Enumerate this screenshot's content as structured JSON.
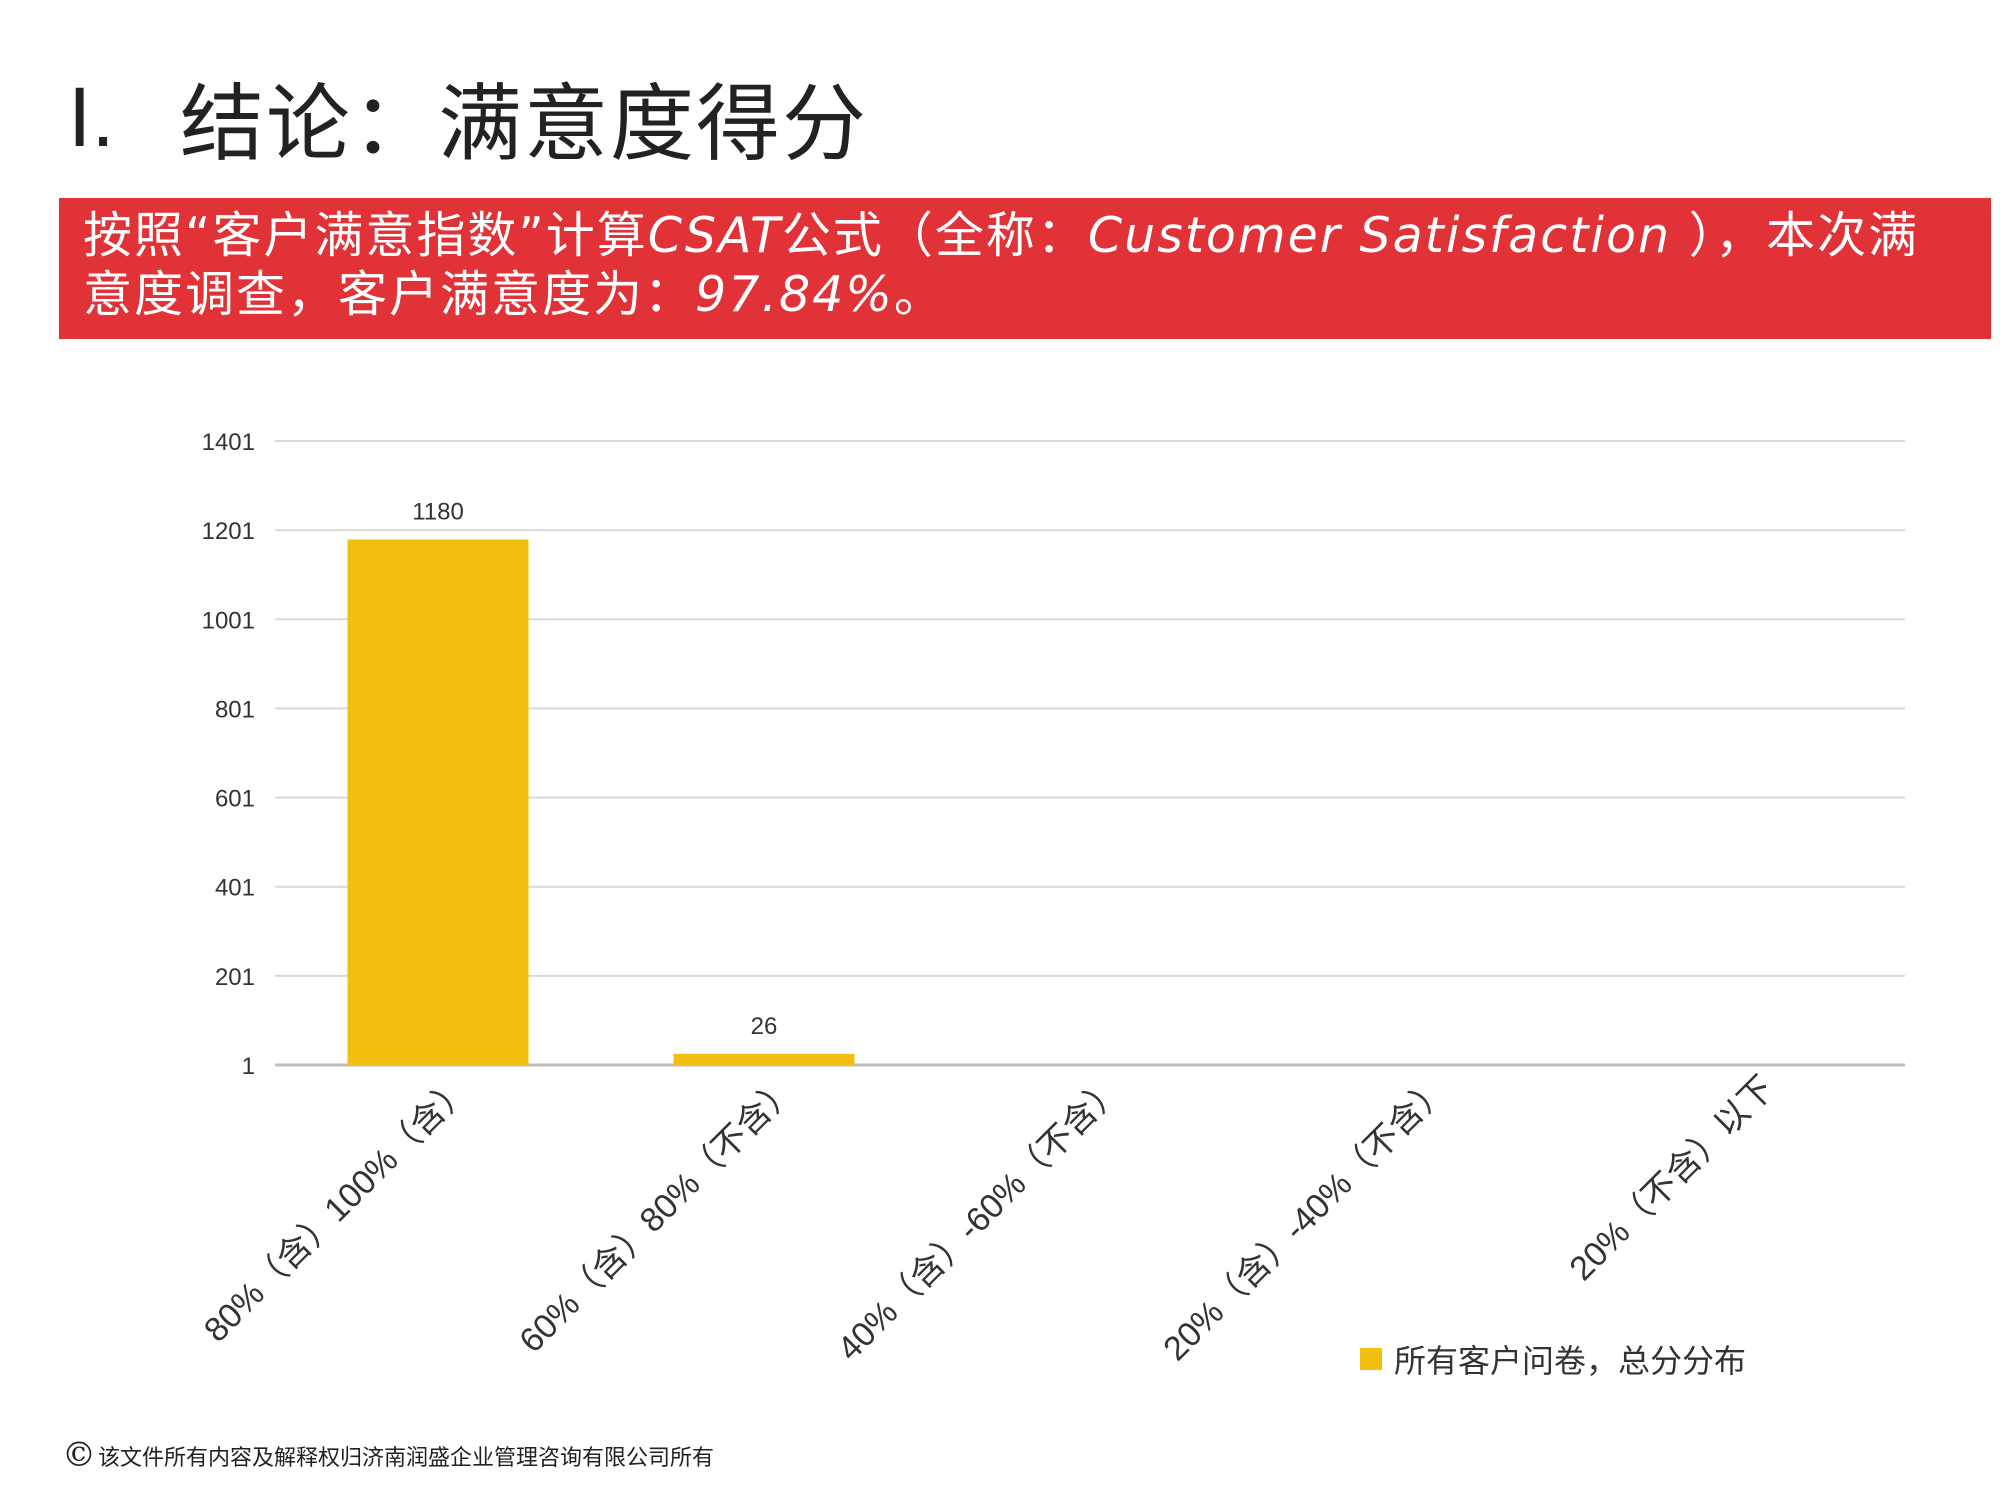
{
  "slide": {
    "number": "I.",
    "title": "结论：满意度得分"
  },
  "banner": {
    "bg_color": "#e03237",
    "line1_a": "按照“客户满意指数”计算",
    "line1_b": "CSAT",
    "line1_c": "公式（全称：",
    "line1_d": "Customer Satisfaction",
    "line1_e": " ），本次满",
    "line2_a": "意度调查，客户满意度为：",
    "line2_b": "97.84%",
    "line2_c": "。"
  },
  "chart_data": {
    "type": "bar",
    "categories": [
      "80%（含）100%（含）",
      "60%（含）80%（不含）",
      "40%（含）-60%（不含）",
      "20%（含）-40%（不含）",
      "20%（不含）以下"
    ],
    "series": [
      {
        "name": "所有客户问卷，总分分布",
        "values": [
          1180,
          26,
          0,
          0,
          0
        ],
        "color": "#f2be0f"
      }
    ],
    "data_labels": [
      "1180",
      "26",
      "",
      "",
      ""
    ],
    "y_ticks": [
      1,
      201,
      401,
      601,
      801,
      1001,
      1201,
      1401
    ],
    "ylim": [
      1,
      1401
    ],
    "grid": true,
    "legend_position": "bottom-right",
    "title": "",
    "xlabel": "",
    "ylabel": ""
  },
  "footer": {
    "symbol": "©",
    "text": "该文件所有内容及解释权归济南润盛企业管理咨询有限公司所有"
  }
}
